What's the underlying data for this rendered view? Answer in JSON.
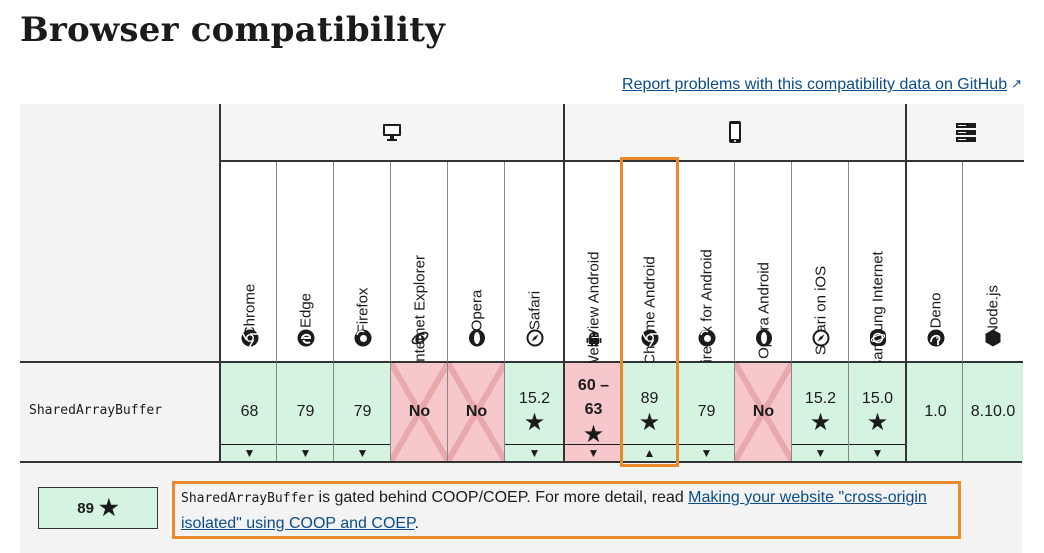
{
  "page": {
    "title": "Browser compatibility",
    "report_link": "Report problems with this compatibility data on GitHub"
  },
  "groups": [
    {
      "name": "desktop",
      "icon": "desktop-icon"
    },
    {
      "name": "mobile",
      "icon": "mobile-icon"
    },
    {
      "name": "server",
      "icon": "server-icon"
    }
  ],
  "browsers": [
    {
      "name": "Chrome",
      "icon": "chrome-icon"
    },
    {
      "name": "Edge",
      "icon": "edge-icon"
    },
    {
      "name": "Firefox",
      "icon": "firefox-icon"
    },
    {
      "name": "Internet Explorer",
      "icon": "ie-icon"
    },
    {
      "name": "Opera",
      "icon": "opera-icon"
    },
    {
      "name": "Safari",
      "icon": "safari-icon"
    },
    {
      "name": "WebView Android",
      "icon": "android-icon"
    },
    {
      "name": "Chrome Android",
      "icon": "chrome-icon"
    },
    {
      "name": "Firefox for Android",
      "icon": "firefox-icon"
    },
    {
      "name": "Opera Android",
      "icon": "opera-icon"
    },
    {
      "name": "Safari on iOS",
      "icon": "safari-icon"
    },
    {
      "name": "Samsung Internet",
      "icon": "samsung-icon"
    },
    {
      "name": "Deno",
      "icon": "deno-icon"
    },
    {
      "name": "Node.js",
      "icon": "nodejs-icon"
    }
  ],
  "row": {
    "feature": "SharedArrayBuffer",
    "cells": [
      {
        "support": "yes",
        "lines": [
          "68"
        ],
        "star": false,
        "toggle": "down"
      },
      {
        "support": "yes",
        "lines": [
          "79"
        ],
        "star": false,
        "toggle": "down"
      },
      {
        "support": "yes",
        "lines": [
          "79"
        ],
        "star": false,
        "toggle": "down"
      },
      {
        "support": "no",
        "lines": [
          "No"
        ],
        "star": false,
        "toggle": ""
      },
      {
        "support": "no",
        "lines": [
          "No"
        ],
        "star": false,
        "toggle": ""
      },
      {
        "support": "yes",
        "lines": [
          "15.2"
        ],
        "star": true,
        "toggle": "down"
      },
      {
        "support": "no",
        "lines": [
          "60 –",
          "63"
        ],
        "star": true,
        "toggle": "down"
      },
      {
        "support": "yes",
        "lines": [
          "89"
        ],
        "star": true,
        "toggle": "up"
      },
      {
        "support": "yes",
        "lines": [
          "79"
        ],
        "star": false,
        "toggle": "down"
      },
      {
        "support": "no",
        "lines": [
          "No"
        ],
        "star": false,
        "toggle": ""
      },
      {
        "support": "yes",
        "lines": [
          "15.2"
        ],
        "star": true,
        "toggle": "down"
      },
      {
        "support": "yes",
        "lines": [
          "15.0"
        ],
        "star": true,
        "toggle": "down"
      },
      {
        "support": "yes",
        "lines": [
          "1.0"
        ],
        "star": false,
        "toggle": ""
      },
      {
        "support": "yes",
        "lines": [
          "8.10.0"
        ],
        "star": false,
        "toggle": ""
      }
    ]
  },
  "detail": {
    "version": "89",
    "code": "SharedArrayBuffer",
    "text": " is gated behind COOP/COEP. For more detail, read ",
    "link": "Making your website \"cross-origin isolated\" using COOP and COEP",
    "end": "."
  },
  "colors": {
    "yes": "#d4f3e1",
    "no": "#f6c7cb",
    "highlight": "#e98a2c",
    "link": "#0a4c8a"
  },
  "symbols": {
    "star": "★",
    "down": "▼",
    "up": "▲",
    "external": "↗"
  }
}
